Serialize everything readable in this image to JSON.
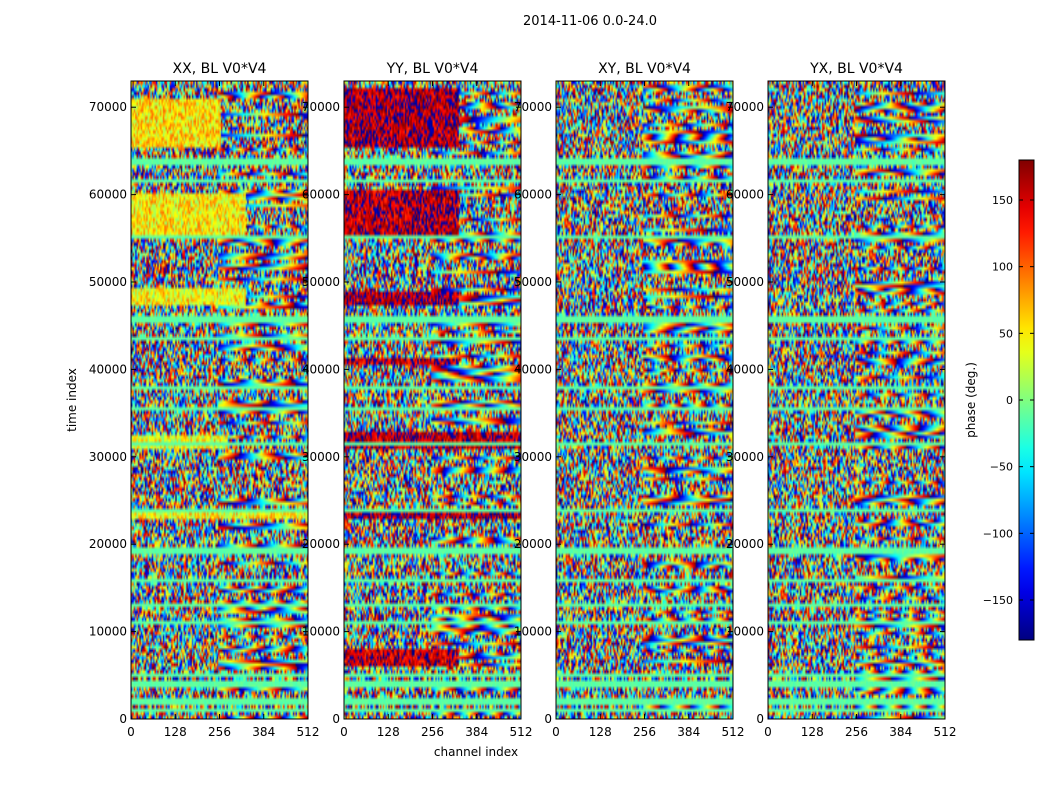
{
  "figure": {
    "suptitle": "2014-11-06 0.0-24.0"
  },
  "chart_data": {
    "type": "heatmap",
    "title": "2014-11-06 0.0-24.0",
    "xlabel": "channel index",
    "ylabel": "time index",
    "xlim": [
      0,
      512
    ],
    "ylim": [
      0,
      73000
    ],
    "xticks": [
      0,
      128,
      256,
      384,
      512
    ],
    "yticks": [
      0,
      10000,
      20000,
      30000,
      40000,
      50000,
      60000,
      70000
    ],
    "xtick_labels": [
      "0",
      "128",
      "256",
      "384",
      "512"
    ],
    "ytick_labels": [
      "0",
      "10000",
      "20000",
      "30000",
      "40000",
      "50000",
      "60000",
      "70000"
    ],
    "panels": [
      {
        "name": "xx",
        "title": "XX, BL V0*V4",
        "bias_bands": [
          [
            55000,
            60000,
            50,
            330
          ],
          [
            65500,
            71000,
            55,
            260
          ],
          [
            47500,
            49500,
            45,
            330
          ],
          [
            31000,
            32500,
            40,
            280
          ],
          [
            23000,
            24000,
            45,
            512
          ]
        ]
      },
      {
        "name": "yy",
        "title": "YY, BL V0*V4",
        "bias_bands": [
          [
            55000,
            60500,
            160,
            330
          ],
          [
            65500,
            72000,
            165,
            330
          ],
          [
            47500,
            49000,
            165,
            330
          ],
          [
            31000,
            33000,
            160,
            512
          ],
          [
            40500,
            41500,
            160,
            330
          ],
          [
            23000,
            24000,
            165,
            512
          ],
          [
            6000,
            8000,
            155,
            330
          ]
        ]
      },
      {
        "name": "xy",
        "title": "XY, BL V0*V4",
        "bias_bands": []
      },
      {
        "name": "yx",
        "title": "YX, BL V0*V4",
        "bias_bands": []
      }
    ],
    "flag_bands": [
      64000,
      63500,
      61500,
      55000,
      46000,
      45500,
      43500,
      38000,
      35500,
      31500,
      23800,
      19500,
      19000,
      16000,
      13000,
      11000,
      5000,
      4000,
      2000,
      1000
    ],
    "colorbar": {
      "label": "phase (deg.)",
      "range": [
        -180,
        180
      ],
      "ticks": [
        150,
        100,
        50,
        0,
        -50,
        -100,
        -150
      ],
      "tick_labels": [
        "150",
        "100",
        "50",
        "0",
        "−50",
        "−100",
        "−150"
      ],
      "colormap": "jet"
    }
  }
}
